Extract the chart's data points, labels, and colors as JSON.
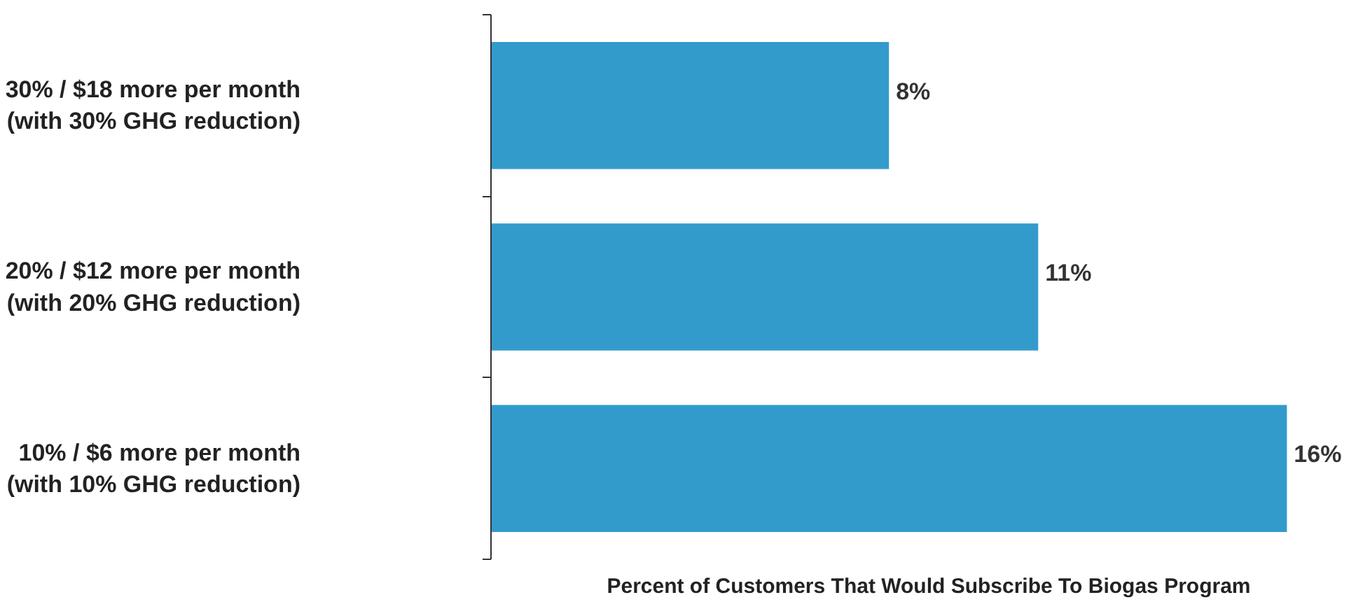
{
  "chart_data": {
    "type": "bar",
    "orientation": "horizontal",
    "categories": [
      "30% / $18 more per month\n(with 30% GHG reduction)",
      "20% / $12 more per month\n(with 20% GHG reduction)",
      "10% / $6 more per month\n(with 10% GHG reduction)"
    ],
    "values": [
      8,
      11,
      16
    ],
    "value_labels": [
      "8%",
      "11%",
      "16%"
    ],
    "color": "#339bcc",
    "xlabel": "Percent of Customers That Would Subscribe To Biogas Program",
    "tick_labels": "y",
    "grid": false
  }
}
